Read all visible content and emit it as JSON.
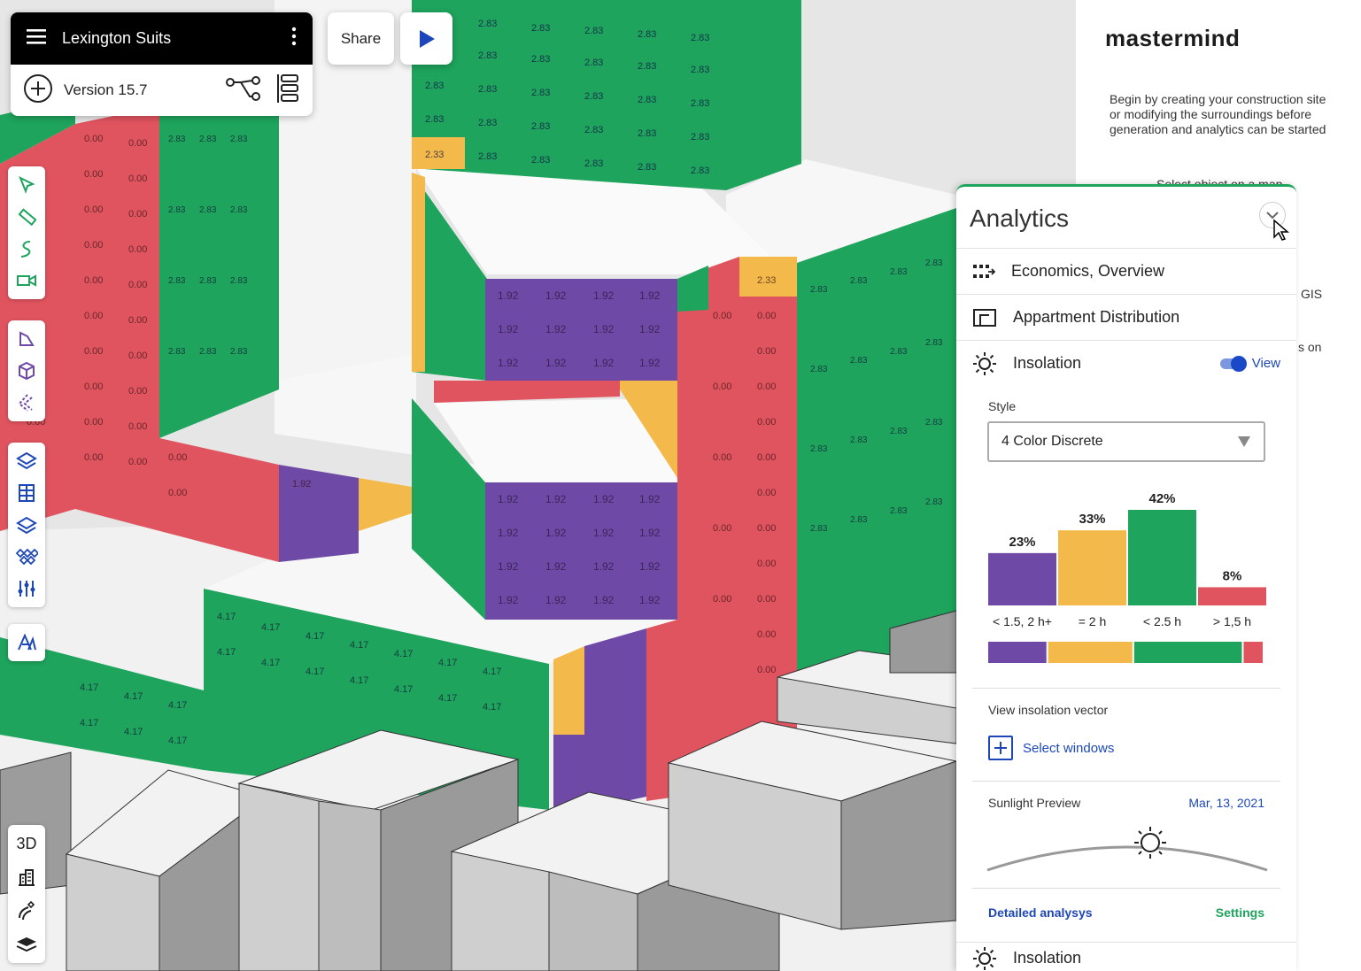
{
  "project": {
    "title": "Lexington Suits",
    "version": "Version 15.7"
  },
  "share_label": "Share",
  "view_mode_label": "3D",
  "brand": "mastermind",
  "intro_text": "Begin by creating your construction site or modifying the surroundings before generation and analytics can be started",
  "hint_select": "Select object on a map",
  "hint_gis": "GIS",
  "hint_on": "s on",
  "analytics": {
    "title": "Analytics",
    "sections": [
      {
        "label": "Economics, Overview",
        "icon": "economics-icon"
      },
      {
        "label": "Appartment Distribution",
        "icon": "apartment-distribution-icon"
      }
    ],
    "insolation": {
      "label": "Insolation",
      "view_label": "View",
      "view_on": true,
      "style_label": "Style",
      "style_value": "4 Color Discrete",
      "vector_label": "View insolation vector",
      "select_windows": "Select windows",
      "sunlight_label": "Sunlight Preview",
      "sunlight_date": "Mar, 13, 2021",
      "detailed_link": "Detailed analysys",
      "settings_link": "Settings",
      "next_section": "Insolation"
    }
  },
  "chart_data": {
    "type": "bar",
    "categories": [
      "< 1.5, 2 h+",
      "= 2 h",
      "< 2.5 h",
      "> 1,5 h"
    ],
    "values": [
      23,
      33,
      42,
      8
    ],
    "value_labels": [
      "23%",
      "33%",
      "42%",
      "8%"
    ],
    "colors": [
      "#6e4aa6",
      "#f4b94b",
      "#1ea45c",
      "#e0545f"
    ],
    "ylim": [
      0,
      42
    ]
  },
  "scene_values": {
    "green_tall": "2.83",
    "green_low": "4.17",
    "red": "0.00",
    "purple": "1.92",
    "yellow": "2.33"
  },
  "colors": {
    "green": "#1ea45c",
    "red": "#e0545f",
    "purple": "#6e4aa6",
    "yellow": "#f4b94b",
    "accent": "#1d47b8"
  }
}
